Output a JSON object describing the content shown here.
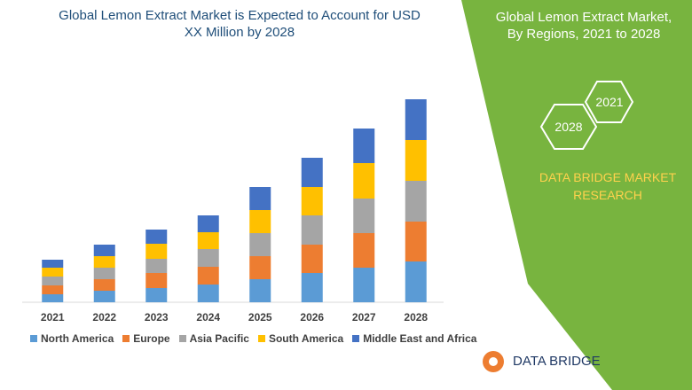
{
  "chart_data": {
    "type": "stacked-bar",
    "title": "Global Lemon Extract Market is Expected to Account for USD XX Million by 2028",
    "categories": [
      "2021",
      "2022",
      "2023",
      "2024",
      "2025",
      "2026",
      "2027",
      "2028"
    ],
    "series": [
      {
        "name": "North America",
        "color": "#5b9bd5",
        "values": [
          9,
          13,
          16,
          20,
          26,
          33,
          39,
          46
        ]
      },
      {
        "name": "Europe",
        "color": "#ed7d31",
        "values": [
          10,
          13,
          17,
          20,
          26,
          32,
          39,
          45
        ]
      },
      {
        "name": "Asia Pacific",
        "color": "#a5a5a5",
        "values": [
          10,
          13,
          16,
          20,
          26,
          33,
          39,
          46
        ]
      },
      {
        "name": "South America",
        "color": "#ffc000",
        "values": [
          10,
          13,
          17,
          19,
          26,
          32,
          40,
          46
        ]
      },
      {
        "name": "Middle East and Africa",
        "color": "#4472c4",
        "values": [
          9,
          13,
          16,
          19,
          26,
          33,
          39,
          46
        ]
      }
    ]
  },
  "panel": {
    "title": "Global Lemon Extract Market, By Regions, 2021 to 2028",
    "badges": [
      "2021",
      "2028"
    ],
    "brand": "DATA BRIDGE MARKET RESEARCH",
    "logo": "DATA BRIDGE"
  }
}
